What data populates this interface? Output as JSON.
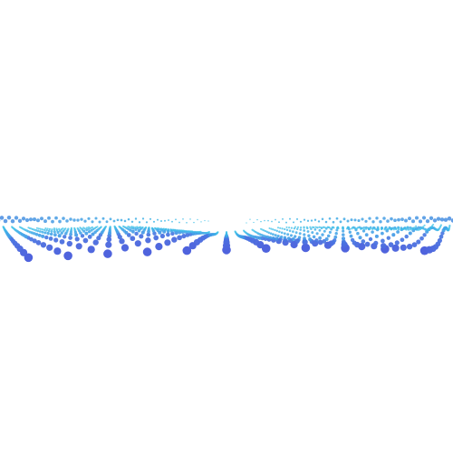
{
  "scene": {
    "background": "#ffffff",
    "colors": {
      "near": "#4f63dd",
      "mid": "#3f8fe6",
      "far": "#3ec3e8"
    }
  }
}
